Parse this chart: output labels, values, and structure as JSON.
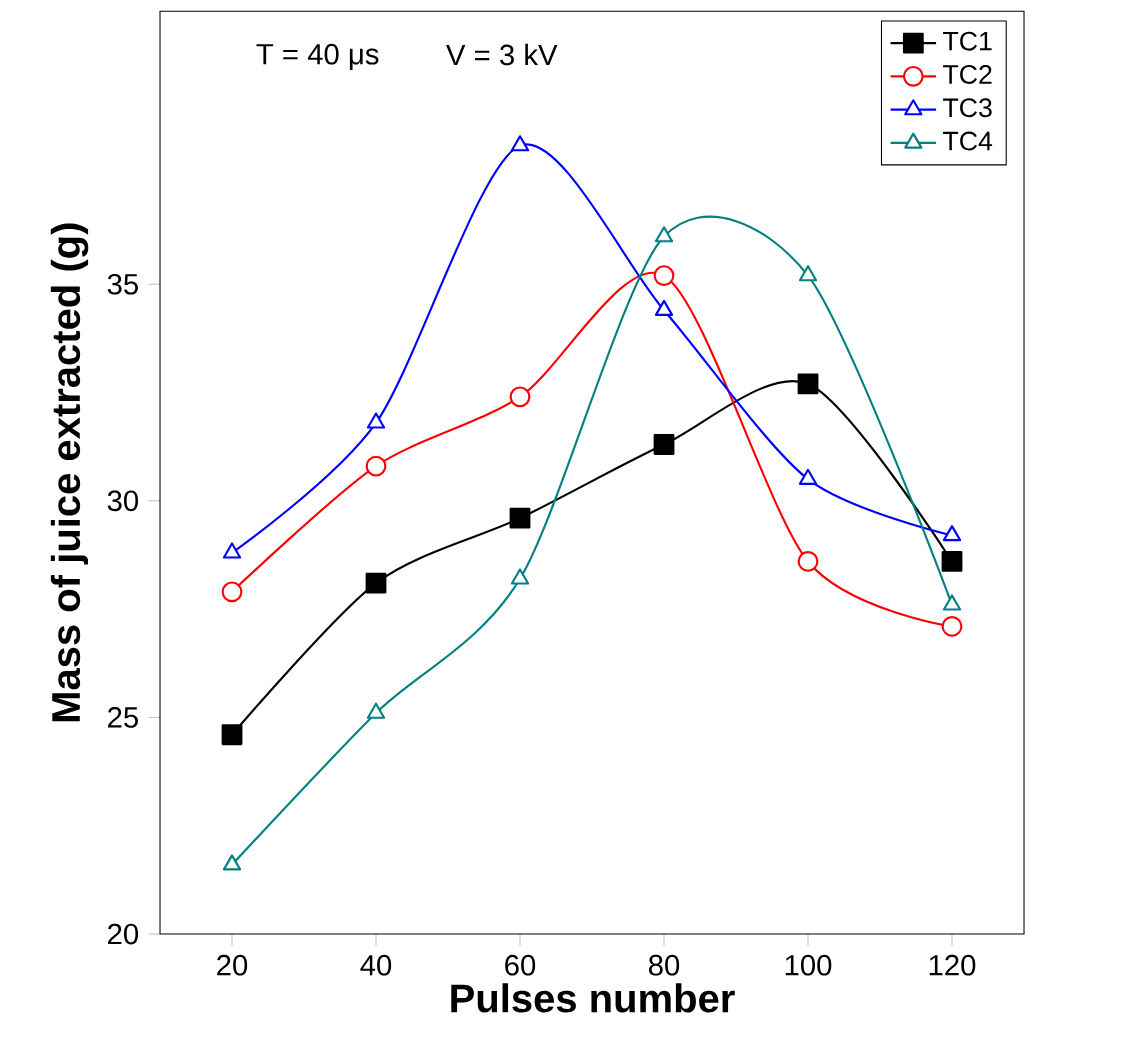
{
  "chart_data": {
    "type": "line",
    "xlabel": "Pulses number",
    "ylabel": "Mass of juice extracted (g)",
    "annotations": [
      "T = 40 μs",
      "V = 3 kV"
    ],
    "x": [
      20,
      40,
      60,
      80,
      100,
      120
    ],
    "xlim": [
      10,
      130
    ],
    "xticks": [
      20,
      40,
      60,
      80,
      100,
      120
    ],
    "ylim": [
      20,
      41.3
    ],
    "yticks": [
      20,
      25,
      30,
      35
    ],
    "legend": "top right",
    "grid": false,
    "series": [
      {
        "name": "TC1",
        "color": "#000000",
        "marker": "square",
        "values": [
          24.6,
          28.1,
          29.6,
          31.3,
          32.7,
          28.6
        ]
      },
      {
        "name": "TC2",
        "color": "#ff0000",
        "marker": "circle",
        "values": [
          27.9,
          30.8,
          32.4,
          35.2,
          28.6,
          27.1
        ]
      },
      {
        "name": "TC3",
        "color": "#0000ff",
        "marker": "triangle",
        "values": [
          28.8,
          31.8,
          38.2,
          34.4,
          30.5,
          29.2
        ]
      },
      {
        "name": "TC4",
        "color": "#008080",
        "marker": "triangle",
        "values": [
          21.6,
          25.1,
          28.2,
          36.1,
          35.2,
          27.6
        ]
      }
    ]
  }
}
